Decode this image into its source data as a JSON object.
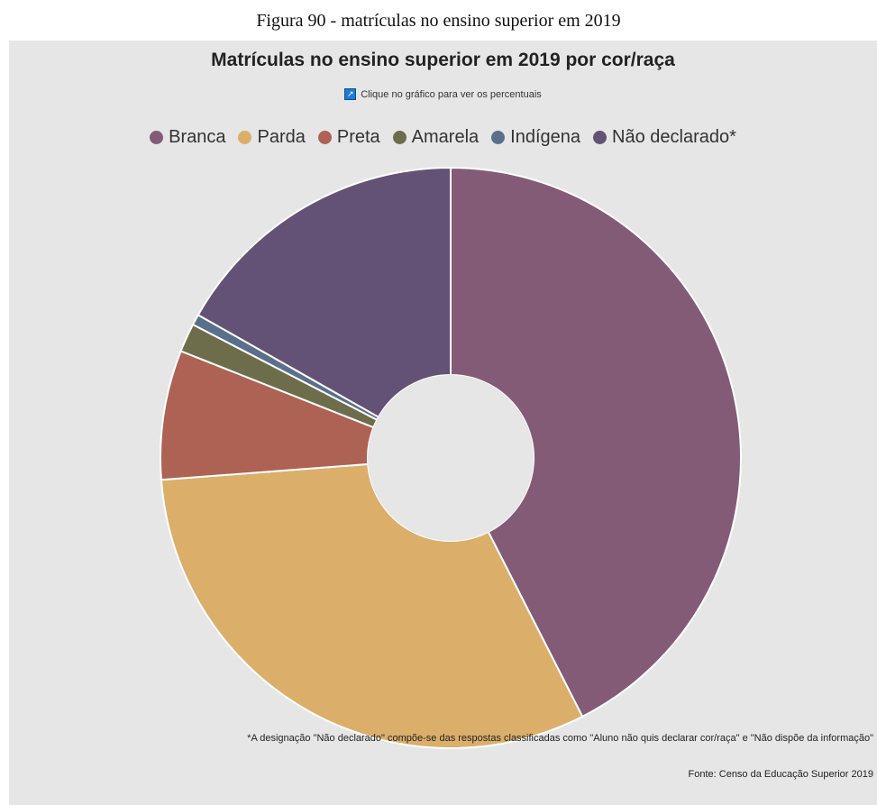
{
  "figure_caption": "Figura 90 -  matrículas no ensino superior em 2019",
  "hint_text": "Clique no gráfico para ver os percentuais",
  "footnote": "*A designação \"Não declarado\" compõe-se das respostas classificadas como \"Aluno não quis declarar cor/raça\" e \"Não dispõe da informação\"",
  "source": "Fonte: Censo da Educação Superior 2019",
  "chart_data": {
    "type": "pie",
    "title": "Matrículas no ensino superior em 2019 por cor/raça",
    "legend_position": "top",
    "donut": true,
    "categories": [
      "Branca",
      "Parda",
      "Preta",
      "Amarela",
      "Indígena",
      "Não declarado*"
    ],
    "values": [
      42.5,
      31.3,
      7.2,
      1.6,
      0.6,
      16.8
    ],
    "colors": [
      "#845b76",
      "#dbae6a",
      "#ae6254",
      "#6e6d4b",
      "#5a6f8c",
      "#635276"
    ]
  }
}
